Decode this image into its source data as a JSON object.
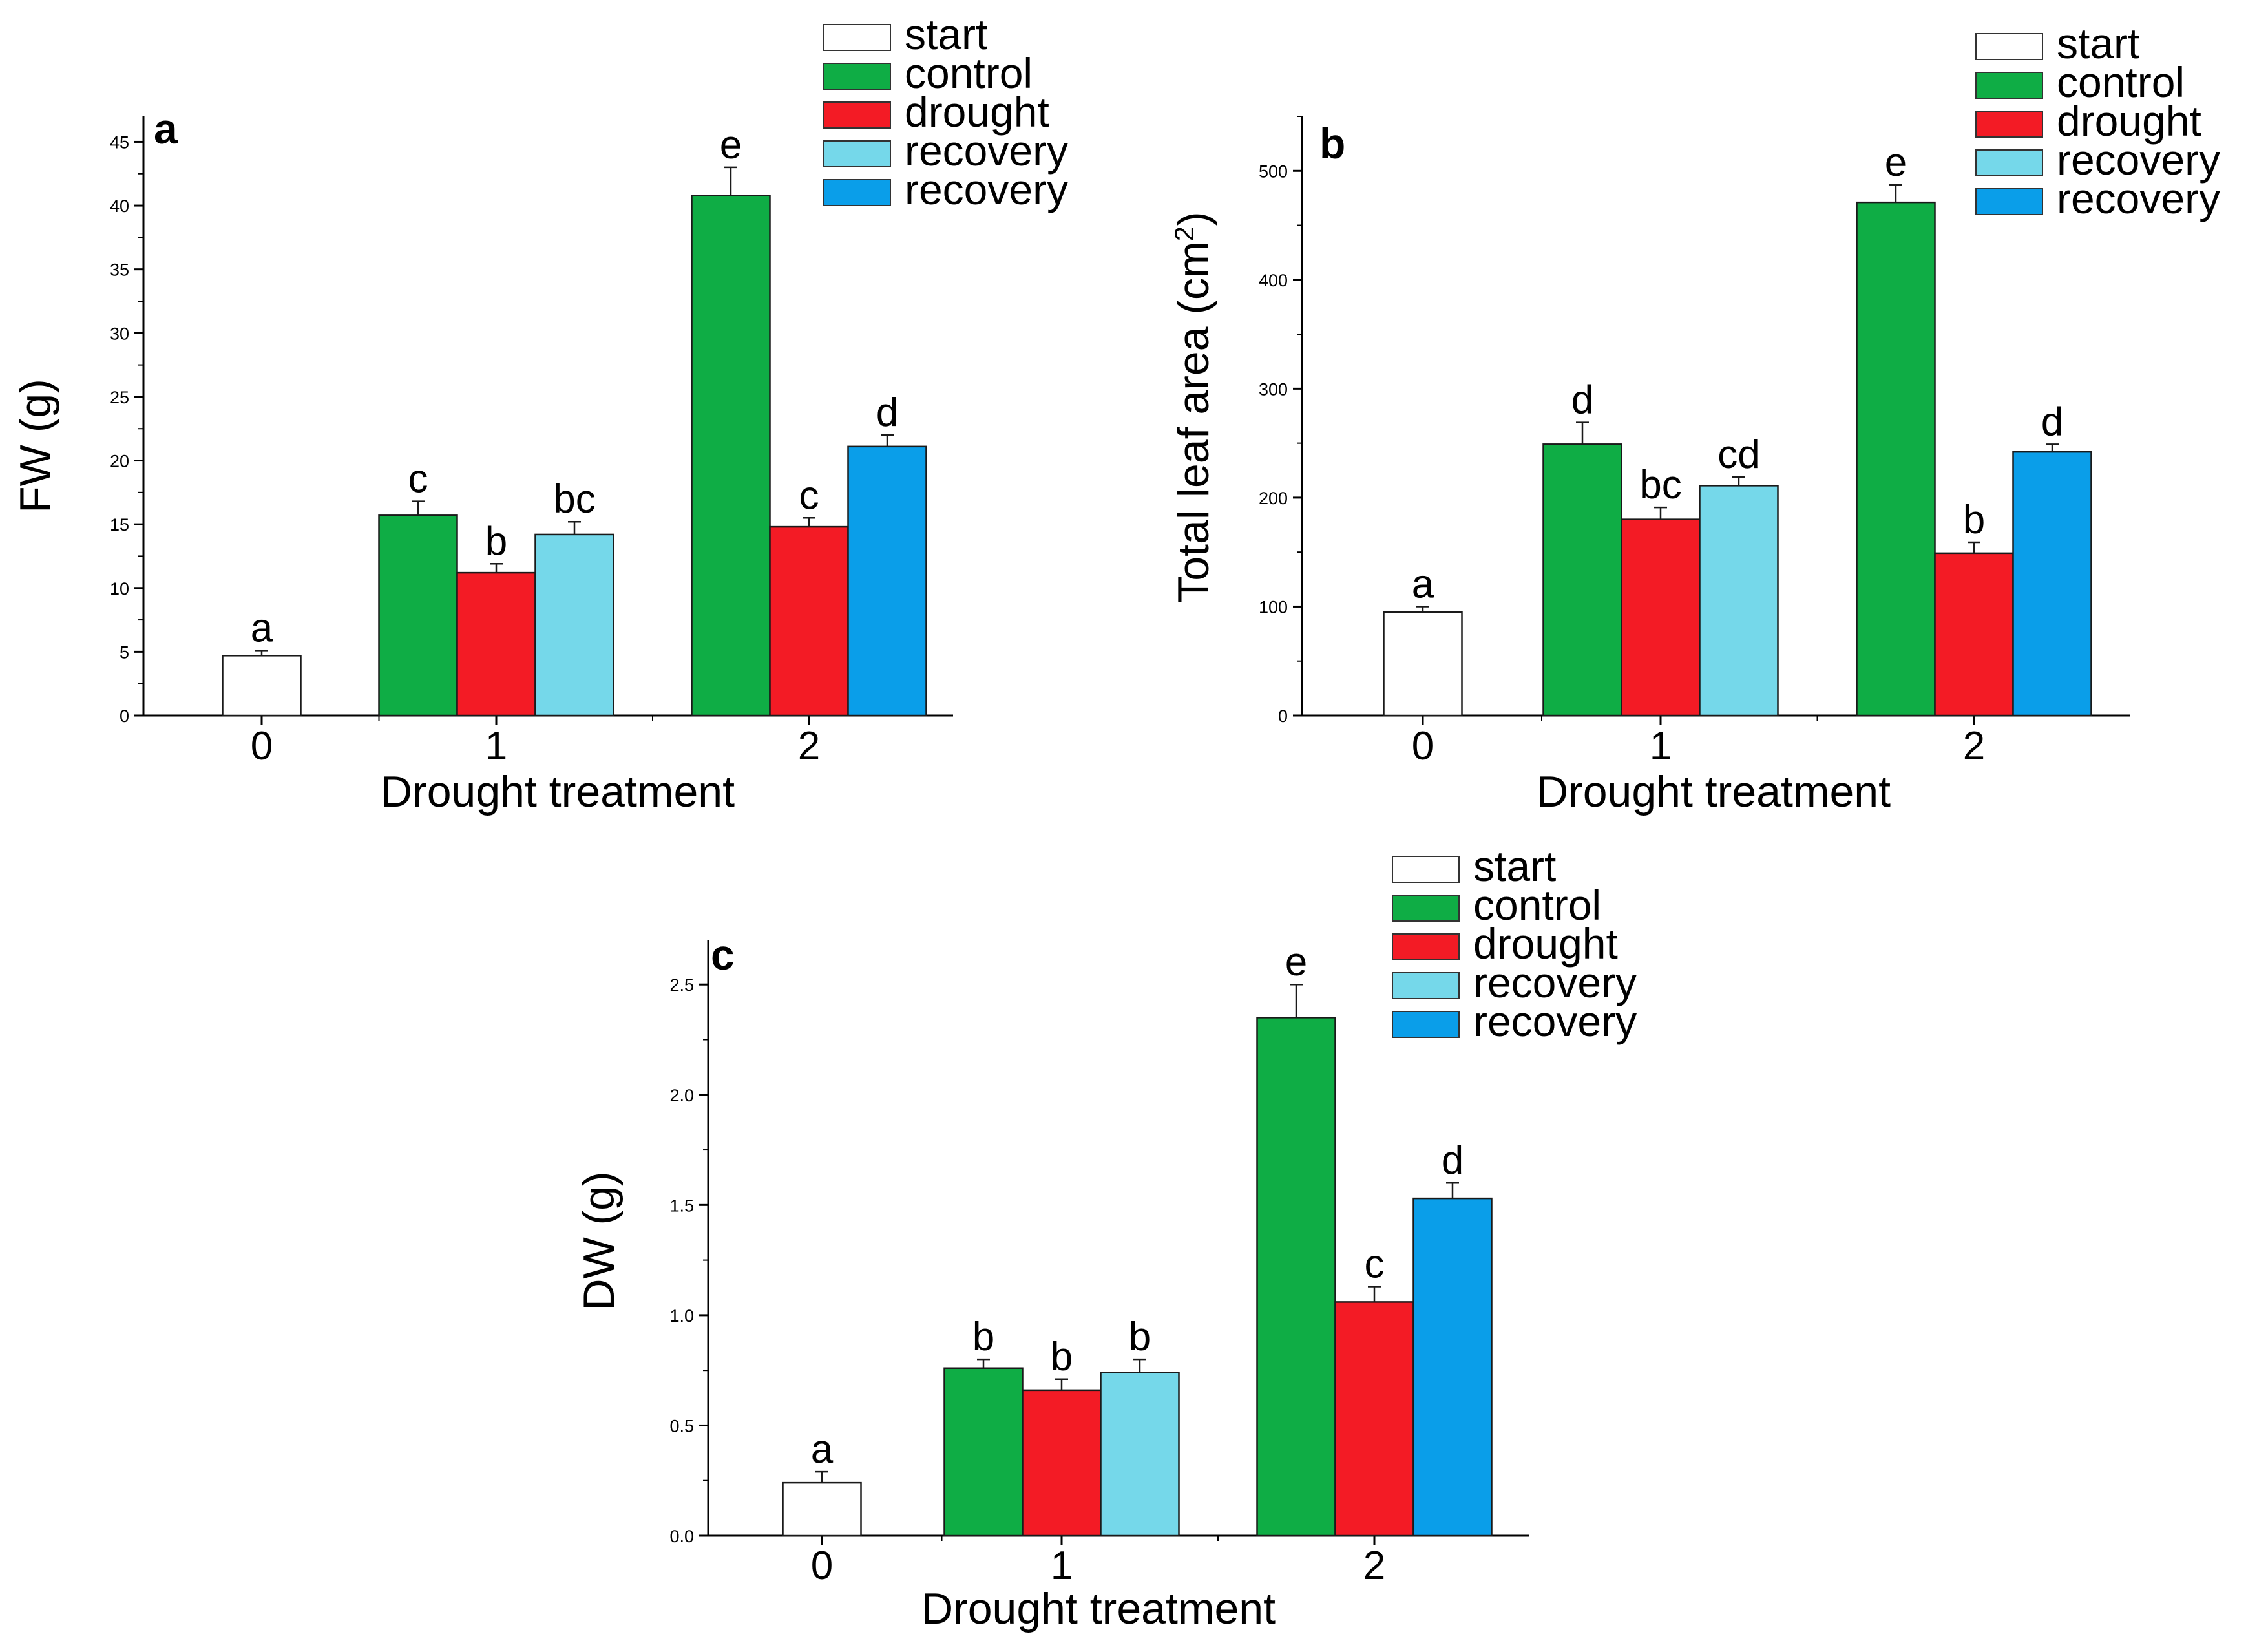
{
  "chart_data": [
    {
      "type": "bar",
      "panel": "a",
      "xlabel": "Drought treatment",
      "ylabel": "FW (g)",
      "ylim": [
        0,
        47
      ],
      "yticks": [
        "0",
        "5",
        "10",
        "15",
        "20",
        "25",
        "30",
        "35",
        "40",
        "45"
      ],
      "categories": [
        "0",
        "1",
        "2"
      ],
      "legend": [
        {
          "name": "start",
          "color": "#ffffff"
        },
        {
          "name": "control",
          "color": "#0fad45"
        },
        {
          "name": "drought",
          "color": "#f31b25"
        },
        {
          "name": "recovery",
          "color": "#75d8ea"
        },
        {
          "name": "recovery",
          "color": "#0a9ee9"
        }
      ],
      "groups": [
        [
          {
            "series": 0,
            "value": 4.7,
            "error": 0.4,
            "sig": "a"
          }
        ],
        [
          {
            "series": 1,
            "value": 15.7,
            "error": 1.1,
            "sig": "c"
          },
          {
            "series": 2,
            "value": 11.2,
            "error": 0.7,
            "sig": "b"
          },
          {
            "series": 3,
            "value": 14.2,
            "error": 1.0,
            "sig": "bc"
          }
        ],
        [
          {
            "series": 1,
            "value": 40.8,
            "error": 2.2,
            "sig": "e"
          },
          {
            "series": 2,
            "value": 14.8,
            "error": 0.7,
            "sig": "c"
          },
          {
            "series": 4,
            "value": 21.1,
            "error": 0.9,
            "sig": "d"
          }
        ]
      ]
    },
    {
      "type": "bar",
      "panel": "b",
      "xlabel": "Drought treatment",
      "ylabel": "Total leaf area (cm",
      "ylabel_sup": "2",
      "ylabel_end": ")",
      "ylim": [
        0,
        550
      ],
      "yticks": [
        "0",
        "100",
        "200",
        "300",
        "400",
        "500"
      ],
      "categories": [
        "0",
        "1",
        "2"
      ],
      "legend": [
        {
          "name": "start",
          "color": "#ffffff"
        },
        {
          "name": "control",
          "color": "#0fad45"
        },
        {
          "name": "drought",
          "color": "#f31b25"
        },
        {
          "name": "recovery",
          "color": "#75d8ea"
        },
        {
          "name": "recovery",
          "color": "#0a9ee9"
        }
      ],
      "groups": [
        [
          {
            "series": 0,
            "value": 95,
            "error": 5,
            "sig": "a"
          }
        ],
        [
          {
            "series": 1,
            "value": 249,
            "error": 20,
            "sig": "d"
          },
          {
            "series": 2,
            "value": 180,
            "error": 11,
            "sig": "bc"
          },
          {
            "series": 3,
            "value": 211,
            "error": 8,
            "sig": "cd"
          }
        ],
        [
          {
            "series": 1,
            "value": 471,
            "error": 16,
            "sig": "e"
          },
          {
            "series": 2,
            "value": 149,
            "error": 10,
            "sig": "b"
          },
          {
            "series": 4,
            "value": 242,
            "error": 7,
            "sig": "d"
          }
        ]
      ]
    },
    {
      "type": "bar",
      "panel": "c",
      "xlabel": "Drought treatment",
      "ylabel": "DW (g)",
      "ylim": [
        0,
        2.7
      ],
      "yticks": [
        "0.0",
        "0.5",
        "1.0",
        "1.5",
        "2.0",
        "2.5"
      ],
      "categories": [
        "0",
        "1",
        "2"
      ],
      "legend": [
        {
          "name": "start",
          "color": "#ffffff"
        },
        {
          "name": "control",
          "color": "#0fad45"
        },
        {
          "name": "drought",
          "color": "#f31b25"
        },
        {
          "name": "recovery",
          "color": "#75d8ea"
        },
        {
          "name": "recovery",
          "color": "#0a9ee9"
        }
      ],
      "groups": [
        [
          {
            "series": 0,
            "value": 0.24,
            "error": 0.05,
            "sig": "a"
          }
        ],
        [
          {
            "series": 1,
            "value": 0.76,
            "error": 0.04,
            "sig": "b"
          },
          {
            "series": 2,
            "value": 0.66,
            "error": 0.05,
            "sig": "b"
          },
          {
            "series": 3,
            "value": 0.74,
            "error": 0.06,
            "sig": "b"
          }
        ],
        [
          {
            "series": 1,
            "value": 2.35,
            "error": 0.15,
            "sig": "e"
          },
          {
            "series": 2,
            "value": 1.06,
            "error": 0.07,
            "sig": "c"
          },
          {
            "series": 4,
            "value": 1.53,
            "error": 0.07,
            "sig": "d"
          }
        ]
      ]
    }
  ]
}
